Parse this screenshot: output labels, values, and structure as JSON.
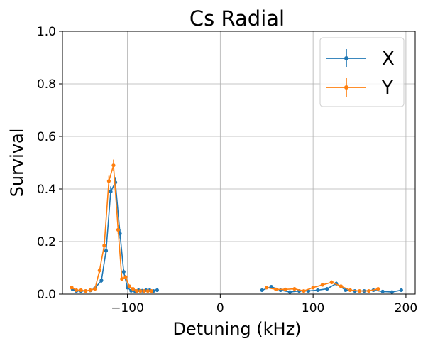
{
  "chart_data": {
    "type": "line",
    "title": "Cs Radial",
    "xlabel": "Detuning (kHz)",
    "ylabel": "Survival",
    "xlim": [
      -170,
      210
    ],
    "ylim": [
      0.0,
      1.0
    ],
    "xticks": [
      -100,
      0,
      100,
      200
    ],
    "yticks": [
      0.0,
      0.2,
      0.4,
      0.6,
      0.8,
      1.0
    ],
    "xtick_labels": [
      "−100",
      "0",
      "100",
      "200"
    ],
    "ytick_labels": [
      "0.0",
      "0.2",
      "0.4",
      "0.6",
      "0.8",
      "1.0"
    ],
    "grid": true,
    "legend_position": "top-right",
    "series": [
      {
        "name": "X",
        "color": "#1f77b4",
        "segments": [
          {
            "x": [
              -159,
              -155,
              -150,
              -145,
              -140,
              -135,
              -128,
              -123,
              -118,
              -113,
              -108,
              -104,
              -100,
              -96,
              -92,
              -88,
              -84,
              -80,
              -76,
              -72,
              -68
            ],
            "y": [
              0.018,
              0.012,
              0.012,
              0.012,
              0.014,
              0.022,
              0.052,
              0.165,
              0.39,
              0.425,
              0.23,
              0.085,
              0.025,
              0.013,
              0.012,
              0.015,
              0.013,
              0.015,
              0.015,
              0.012,
              0.015
            ],
            "err": [
              0.005,
              0.005,
              0.005,
              0.005,
              0.005,
              0.006,
              0.01,
              0.015,
              0.02,
              0.02,
              0.018,
              0.01,
              0.006,
              0.005,
              0.005,
              0.005,
              0.005,
              0.005,
              0.005,
              0.005,
              0.005
            ]
          },
          {
            "x": [
              45,
              55,
              65,
              75,
              85,
              95,
              105,
              115,
              125,
              135,
              145,
              155,
              165,
              175,
              185,
              195
            ],
            "y": [
              0.015,
              0.028,
              0.015,
              0.008,
              0.012,
              0.012,
              0.015,
              0.02,
              0.04,
              0.015,
              0.012,
              0.012,
              0.015,
              0.01,
              0.008,
              0.015
            ],
            "err": [
              0.005,
              0.006,
              0.005,
              0.004,
              0.005,
              0.005,
              0.005,
              0.005,
              0.008,
              0.005,
              0.005,
              0.005,
              0.005,
              0.004,
              0.004,
              0.005
            ]
          }
        ]
      },
      {
        "name": "Y",
        "color": "#ff7f0e",
        "segments": [
          {
            "x": [
              -160,
              -155,
              -150,
              -145,
              -140,
              -135,
              -130,
              -125,
              -120,
              -115,
              -110,
              -106,
              -102,
              -98,
              -94,
              -90,
              -86,
              -82,
              -78,
              -74
            ],
            "y": [
              0.025,
              0.015,
              0.015,
              0.012,
              0.015,
              0.02,
              0.09,
              0.185,
              0.43,
              0.49,
              0.245,
              0.058,
              0.065,
              0.03,
              0.02,
              0.012,
              0.012,
              0.012,
              0.012,
              0.012
            ],
            "err": [
              0.005,
              0.005,
              0.005,
              0.005,
              0.005,
              0.006,
              0.01,
              0.015,
              0.02,
              0.022,
              0.018,
              0.008,
              0.008,
              0.006,
              0.005,
              0.005,
              0.005,
              0.005,
              0.005,
              0.005
            ]
          },
          {
            "x": [
              50,
              60,
              70,
              80,
              90,
              100,
              110,
              120,
              130,
              140,
              150,
              160,
              170
            ],
            "y": [
              0.025,
              0.018,
              0.018,
              0.02,
              0.012,
              0.025,
              0.035,
              0.045,
              0.03,
              0.015,
              0.012,
              0.012,
              0.02
            ],
            "err": [
              0.005,
              0.005,
              0.005,
              0.005,
              0.005,
              0.005,
              0.006,
              0.007,
              0.006,
              0.005,
              0.005,
              0.005,
              0.005
            ]
          }
        ]
      }
    ]
  }
}
